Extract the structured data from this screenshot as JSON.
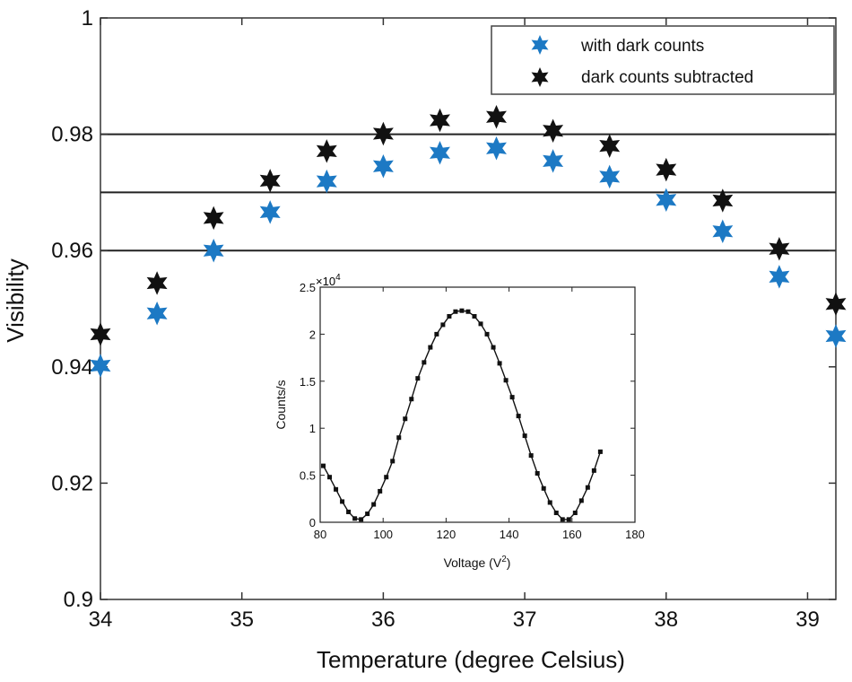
{
  "colors": {
    "with_dark": "#1c79c4",
    "subtracted": "#111111",
    "axis": "#333333"
  },
  "chart_data": [
    {
      "type": "scatter",
      "xlabel": "Temperature (degree Celsius)",
      "ylabel": "Visibility",
      "xlim": [
        34,
        39.2
      ],
      "ylim": [
        0.9,
        1.0
      ],
      "xticks": [
        "34",
        "35",
        "36",
        "37",
        "38",
        "39"
      ],
      "xtick_values": [
        34,
        35,
        36,
        37,
        38,
        39
      ],
      "yticks": [
        "0.9",
        "0.92",
        "0.94",
        "0.96",
        "0.98",
        "1"
      ],
      "ytick_values": [
        0.9,
        0.92,
        0.94,
        0.96,
        0.98,
        1.0
      ],
      "reference_lines": [
        0.96,
        0.97,
        0.98
      ],
      "legend_position": "top-right",
      "series": [
        {
          "name": "with dark counts",
          "color": "#1c79c4",
          "x": [
            34.0,
            34.4,
            34.8,
            35.2,
            35.6,
            36.0,
            36.4,
            36.8,
            37.2,
            37.6,
            38.0,
            38.4,
            38.8,
            39.2
          ],
          "y": [
            0.9402,
            0.9492,
            0.96,
            0.9666,
            0.9719,
            0.9745,
            0.9768,
            0.9776,
            0.9754,
            0.9727,
            0.9687,
            0.9633,
            0.9555,
            0.9453
          ]
        },
        {
          "name": "dark counts subtracted",
          "color": "#111111",
          "x": [
            34.0,
            34.4,
            34.8,
            35.2,
            35.6,
            36.0,
            36.4,
            36.8,
            37.2,
            37.6,
            38.0,
            38.4,
            38.8,
            39.2
          ],
          "y": [
            0.9456,
            0.9544,
            0.9656,
            0.972,
            0.9771,
            0.9801,
            0.9824,
            0.983,
            0.9806,
            0.978,
            0.9739,
            0.9686,
            0.9603,
            0.9508
          ]
        }
      ]
    },
    {
      "type": "line",
      "xlabel": "Voltage (V",
      "xlabel_sup": "2",
      "xlabel_end": ")",
      "ylabel": "Counts/s",
      "xlim": [
        80,
        180
      ],
      "ylim": [
        0,
        2.5
      ],
      "xticks": [
        "80",
        "100",
        "120",
        "140",
        "160",
        "180"
      ],
      "xtick_values": [
        80,
        100,
        120,
        140,
        160,
        180
      ],
      "yticks": [
        "0",
        "0.5",
        "1",
        "1.5",
        "2",
        "2.5"
      ],
      "ytick_values": [
        0,
        0.5,
        1,
        1.5,
        2,
        2.5
      ],
      "y_multiplier": "×10",
      "y_multiplier_exp": "4",
      "series": [
        {
          "x": [
            81,
            83,
            85,
            87,
            89,
            91,
            93,
            95,
            97,
            99,
            101,
            103,
            105,
            107,
            109,
            111,
            113,
            115,
            117,
            119,
            121,
            123,
            125,
            127,
            129,
            131,
            133,
            135,
            137,
            139,
            141,
            143,
            145,
            147,
            149,
            151,
            153,
            155,
            157,
            159,
            161,
            163,
            165,
            167,
            169
          ],
          "y": [
            0.6,
            0.48,
            0.35,
            0.22,
            0.11,
            0.04,
            0.03,
            0.09,
            0.19,
            0.33,
            0.48,
            0.65,
            0.9,
            1.1,
            1.31,
            1.53,
            1.7,
            1.86,
            2.0,
            2.1,
            2.19,
            2.24,
            2.25,
            2.24,
            2.19,
            2.11,
            2.0,
            1.86,
            1.69,
            1.51,
            1.33,
            1.13,
            0.92,
            0.71,
            0.52,
            0.36,
            0.21,
            0.1,
            0.03,
            0.03,
            0.1,
            0.23,
            0.37,
            0.55,
            0.75
          ]
        }
      ]
    }
  ]
}
